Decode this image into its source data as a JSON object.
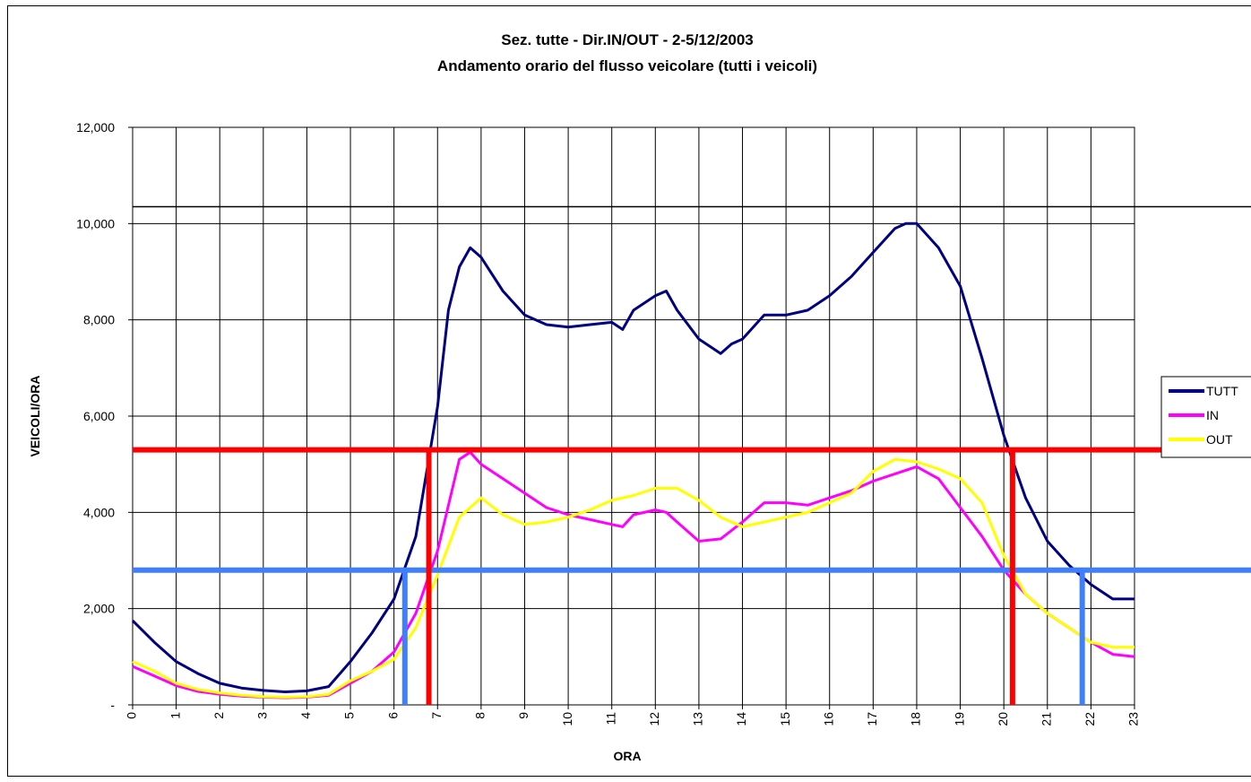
{
  "chart_data": {
    "type": "line",
    "title_line1": "Sez. tutte    - Dir.IN/OUT - 2-5/12/2003",
    "title_line2": "Andamento orario del flusso veicolare (tutti i veicoli)",
    "xlabel": "ORA",
    "ylabel": "VEICOLI/ORA",
    "xlim": [
      0,
      23
    ],
    "ylim": [
      0,
      12000
    ],
    "x_ticks": [
      "0",
      "1",
      "2",
      "3",
      "4",
      "5",
      "6",
      "7",
      "8",
      "9",
      "10",
      "11",
      "12",
      "13",
      "14",
      "15",
      "16",
      "17",
      "18",
      "19",
      "20",
      "21",
      "22",
      "23"
    ],
    "y_ticks": [
      {
        "value": 0,
        "label": "-"
      },
      {
        "value": 2000,
        "label": "2,000"
      },
      {
        "value": 4000,
        "label": "4,000"
      },
      {
        "value": 6000,
        "label": "6,000"
      },
      {
        "value": 8000,
        "label": "8,000"
      },
      {
        "value": 10000,
        "label": "10,000"
      },
      {
        "value": 12000,
        "label": "12,000"
      }
    ],
    "grid": true,
    "legend_position": "right",
    "series": [
      {
        "name": "TUTT",
        "color": "#000080",
        "x": [
          0,
          0.5,
          1,
          1.5,
          2,
          2.5,
          3,
          3.5,
          4,
          4.5,
          5,
          5.5,
          6,
          6.5,
          7,
          7.25,
          7.5,
          7.75,
          8,
          8.5,
          9,
          9.5,
          10,
          10.5,
          11,
          11.25,
          11.5,
          12,
          12.25,
          12.5,
          13,
          13.5,
          13.75,
          14,
          14.5,
          15,
          15.5,
          16,
          16.5,
          17,
          17.5,
          17.75,
          18,
          18.5,
          19,
          19.5,
          20,
          20.5,
          21,
          21.5,
          22,
          22.5,
          23
        ],
        "y": [
          1750,
          1300,
          900,
          650,
          450,
          350,
          300,
          270,
          290,
          380,
          900,
          1500,
          2200,
          3500,
          6200,
          8200,
          9100,
          9500,
          9300,
          8600,
          8100,
          7900,
          7850,
          7900,
          7950,
          7800,
          8200,
          8500,
          8600,
          8200,
          7600,
          7300,
          7500,
          7600,
          8100,
          8100,
          8200,
          8500,
          8900,
          9400,
          9900,
          10000,
          10000,
          9500,
          8700,
          7200,
          5600,
          4300,
          3400,
          2900,
          2500,
          2200,
          2200
        ]
      },
      {
        "name": "IN",
        "color": "#ff00ff",
        "x": [
          0,
          0.5,
          1,
          1.5,
          2,
          2.5,
          3,
          3.5,
          4,
          4.5,
          5,
          5.5,
          6,
          6.5,
          7,
          7.5,
          7.75,
          8,
          8.5,
          9,
          9.5,
          10,
          10.5,
          11,
          11.25,
          11.5,
          12,
          12.25,
          12.5,
          13,
          13.5,
          14,
          14.5,
          15,
          15.5,
          16,
          16.5,
          17,
          17.5,
          18,
          18.5,
          19,
          19.5,
          20,
          20.5,
          21,
          21.5,
          22,
          22.5,
          23
        ],
        "y": [
          800,
          600,
          400,
          280,
          220,
          180,
          160,
          150,
          160,
          200,
          450,
          700,
          1100,
          1900,
          3200,
          5100,
          5250,
          5000,
          4700,
          4400,
          4100,
          3950,
          3850,
          3750,
          3700,
          3950,
          4050,
          4000,
          3800,
          3400,
          3450,
          3800,
          4200,
          4200,
          4150,
          4300,
          4450,
          4650,
          4800,
          4950,
          4700,
          4100,
          3500,
          2800,
          2300,
          1900,
          1600,
          1300,
          1050,
          1000
        ]
      },
      {
        "name": "OUT",
        "color": "#ffff00",
        "x": [
          0,
          0.5,
          1,
          1.5,
          2,
          2.5,
          3,
          3.5,
          4,
          4.5,
          5,
          5.5,
          6,
          6.5,
          7,
          7.5,
          8,
          8.5,
          9,
          9.5,
          10,
          10.5,
          11,
          11.5,
          12,
          12.5,
          13,
          13.5,
          14,
          14.5,
          15,
          15.5,
          16,
          16.5,
          17,
          17.5,
          18,
          18.5,
          19,
          19.5,
          20,
          20.5,
          21,
          21.5,
          22,
          22.5,
          23
        ],
        "y": [
          900,
          700,
          450,
          320,
          250,
          200,
          170,
          160,
          170,
          220,
          500,
          700,
          950,
          1600,
          2700,
          3900,
          4300,
          3950,
          3750,
          3800,
          3900,
          4050,
          4250,
          4350,
          4500,
          4500,
          4250,
          3900,
          3700,
          3800,
          3900,
          4000,
          4200,
          4400,
          4850,
          5100,
          5050,
          4900,
          4700,
          4200,
          3100,
          2300,
          1900,
          1600,
          1300,
          1200,
          1200
        ]
      }
    ],
    "reference_lines": [
      {
        "orientation": "horizontal",
        "value": 10350,
        "color": "#000000"
      },
      {
        "orientation": "horizontal",
        "value": 5300,
        "color": "#ff0000"
      },
      {
        "orientation": "horizontal",
        "value": 2800,
        "color": "#3f7fff"
      },
      {
        "orientation": "vertical",
        "value": 6.8,
        "from": 0,
        "to": 5300,
        "color": "#ff0000"
      },
      {
        "orientation": "vertical",
        "value": 20.2,
        "from": 0,
        "to": 5300,
        "color": "#ff0000"
      },
      {
        "orientation": "vertical",
        "value": 6.25,
        "from": 0,
        "to": 2800,
        "color": "#3f7fff"
      },
      {
        "orientation": "vertical",
        "value": 21.8,
        "from": 0,
        "to": 2800,
        "color": "#3f7fff"
      }
    ]
  }
}
